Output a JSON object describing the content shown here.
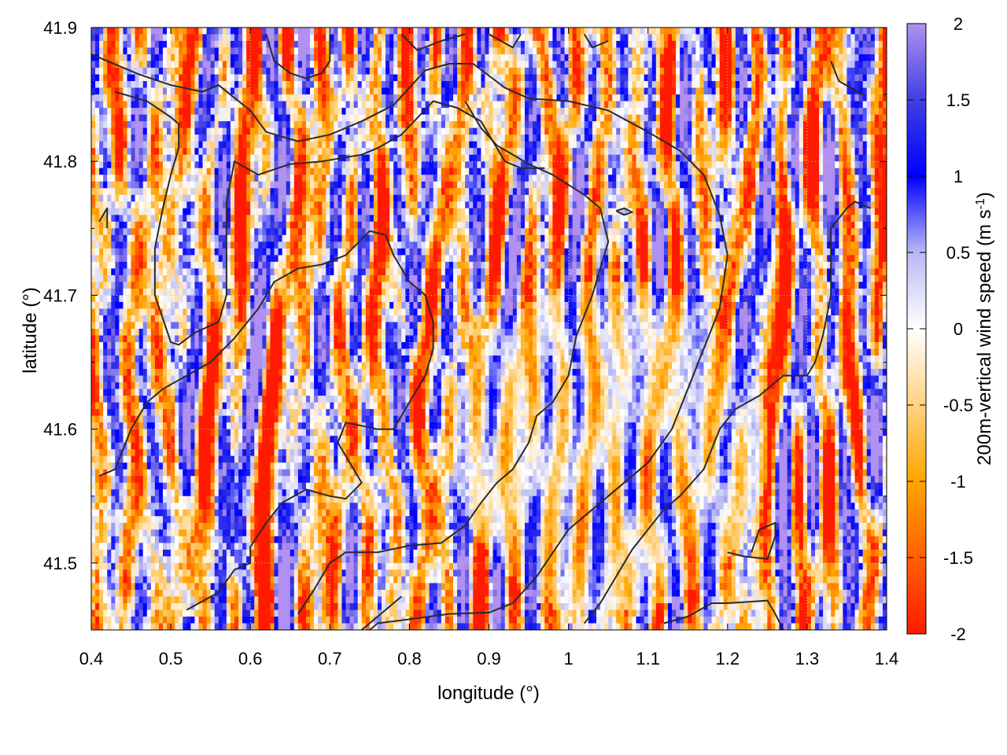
{
  "chart_data": {
    "type": "heatmap",
    "xlabel": "longitude (°)",
    "ylabel": "latitude (°)",
    "colorbar_label": "200m-vertical wind speed (m s⁻¹)",
    "colorbar_label_parts": {
      "main": "200m-vertical wind speed (m s",
      "sup": "-1",
      "close": ")"
    },
    "xlim": [
      0.4,
      1.4
    ],
    "ylim": [
      41.45,
      41.9
    ],
    "clim": [
      -2,
      2
    ],
    "x_ticks": [
      "0.4",
      "0.5",
      "0.6",
      "0.7",
      "0.8",
      "0.9",
      "1",
      "1.1",
      "1.2",
      "1.3",
      "1.4"
    ],
    "y_ticks": [
      "41.5",
      "41.6",
      "41.7",
      "41.8",
      "41.9"
    ],
    "colorbar_ticks": [
      "-2",
      "-1.5",
      "-1",
      "-0.5",
      "0",
      "0.5",
      "1",
      "1.5",
      "2"
    ],
    "colormap": [
      {
        "v": -2.0,
        "color": "#ff1a00"
      },
      {
        "v": -1.0,
        "color": "#ffa500"
      },
      {
        "v": -0.3,
        "color": "#ffe4b5"
      },
      {
        "v": 0.0,
        "color": "#ffffff"
      },
      {
        "v": 0.5,
        "color": "#b8b8f5"
      },
      {
        "v": 1.0,
        "color": "#0000ff"
      },
      {
        "v": 1.5,
        "color": "#4040e0"
      },
      {
        "v": 2.0,
        "color": "#b090f0"
      }
    ],
    "grid": true,
    "field_description": "gridded vertical wind speed field (about 200 x 90 cells) with overlaid black coastline/terrain contours",
    "contours": [
      [
        [
          0.4,
          41.88
        ],
        [
          0.46,
          41.865
        ],
        [
          0.5,
          41.857
        ],
        [
          0.54,
          41.852
        ],
        [
          0.56,
          41.857
        ],
        [
          0.6,
          41.838
        ],
        [
          0.62,
          41.822
        ],
        [
          0.66,
          41.815
        ],
        [
          0.7,
          41.82
        ],
        [
          0.74,
          41.83
        ],
        [
          0.78,
          41.842
        ],
        [
          0.82,
          41.868
        ],
        [
          0.85,
          41.873
        ],
        [
          0.88,
          41.873
        ],
        [
          0.92,
          41.855
        ],
        [
          0.95,
          41.847
        ],
        [
          1.0,
          41.845
        ],
        [
          1.05,
          41.838
        ],
        [
          1.1,
          41.822
        ],
        [
          1.14,
          41.808
        ],
        [
          1.17,
          41.79
        ],
        [
          1.19,
          41.76
        ],
        [
          1.2,
          41.73
        ],
        [
          1.19,
          41.69
        ],
        [
          1.17,
          41.66
        ],
        [
          1.15,
          41.63
        ],
        [
          1.13,
          41.6
        ],
        [
          1.1,
          41.575
        ],
        [
          1.05,
          41.55
        ],
        [
          1.0,
          41.525
        ],
        [
          0.96,
          41.49
        ],
        [
          0.93,
          41.47
        ],
        [
          0.9,
          41.463
        ],
        [
          0.85,
          41.462
        ],
        [
          0.8,
          41.458
        ],
        [
          0.76,
          41.455
        ],
        [
          0.75,
          41.45
        ]
      ],
      [
        [
          0.43,
          41.852
        ],
        [
          0.47,
          41.845
        ],
        [
          0.5,
          41.833
        ],
        [
          0.51,
          41.828
        ],
        [
          0.51,
          41.81
        ],
        [
          0.5,
          41.79
        ],
        [
          0.49,
          41.765
        ],
        [
          0.48,
          41.735
        ],
        [
          0.48,
          41.7
        ],
        [
          0.5,
          41.665
        ],
        [
          0.51,
          41.663
        ],
        [
          0.53,
          41.672
        ],
        [
          0.56,
          41.68
        ],
        [
          0.57,
          41.7
        ],
        [
          0.57,
          41.74
        ],
        [
          0.57,
          41.77
        ],
        [
          0.58,
          41.8
        ],
        [
          0.61,
          41.79
        ],
        [
          0.65,
          41.798
        ],
        [
          0.69,
          41.8
        ],
        [
          0.74,
          41.805
        ],
        [
          0.76,
          41.81
        ],
        [
          0.79,
          41.82
        ],
        [
          0.83,
          41.845
        ],
        [
          0.86,
          41.84
        ],
        [
          0.89,
          41.83
        ],
        [
          0.92,
          41.8
        ],
        [
          0.94,
          41.795
        ],
        [
          0.97,
          41.795
        ]
      ],
      [
        [
          0.41,
          41.565
        ],
        [
          0.43,
          41.57
        ],
        [
          0.45,
          41.6
        ],
        [
          0.47,
          41.62
        ],
        [
          0.49,
          41.63
        ],
        [
          0.52,
          41.64
        ],
        [
          0.55,
          41.65
        ],
        [
          0.58,
          41.668
        ],
        [
          0.61,
          41.69
        ],
        [
          0.63,
          41.71
        ],
        [
          0.66,
          41.72
        ],
        [
          0.69,
          41.723
        ],
        [
          0.72,
          41.73
        ],
        [
          0.75,
          41.748
        ],
        [
          0.77,
          41.745
        ],
        [
          0.78,
          41.73
        ],
        [
          0.8,
          41.71
        ],
        [
          0.82,
          41.7
        ],
        [
          0.83,
          41.68
        ],
        [
          0.83,
          41.66
        ],
        [
          0.82,
          41.64
        ],
        [
          0.8,
          41.62
        ],
        [
          0.78,
          41.6
        ],
        [
          0.76,
          41.6
        ],
        [
          0.72,
          41.605
        ],
        [
          0.71,
          41.59
        ],
        [
          0.72,
          41.58
        ],
        [
          0.73,
          41.57
        ],
        [
          0.74,
          41.56
        ],
        [
          0.72,
          41.548
        ],
        [
          0.7,
          41.55
        ],
        [
          0.67,
          41.555
        ],
        [
          0.64,
          41.545
        ],
        [
          0.62,
          41.53
        ],
        [
          0.6,
          41.512
        ],
        [
          0.6,
          41.5
        ],
        [
          0.58,
          41.495
        ],
        [
          0.56,
          41.478
        ],
        [
          0.52,
          41.465
        ]
      ],
      [
        [
          0.66,
          41.462
        ],
        [
          0.68,
          41.48
        ],
        [
          0.7,
          41.5
        ],
        [
          0.72,
          41.508
        ],
        [
          0.76,
          41.508
        ],
        [
          0.8,
          41.513
        ],
        [
          0.84,
          41.515
        ],
        [
          0.87,
          41.528
        ],
        [
          0.89,
          41.545
        ],
        [
          0.91,
          41.56
        ],
        [
          0.93,
          41.57
        ],
        [
          0.95,
          41.59
        ],
        [
          0.96,
          41.61
        ],
        [
          0.98,
          41.62
        ],
        [
          1.0,
          41.64
        ],
        [
          1.01,
          41.67
        ],
        [
          1.03,
          41.7
        ],
        [
          1.04,
          41.72
        ],
        [
          1.05,
          41.74
        ],
        [
          1.04,
          41.765
        ],
        [
          1.02,
          41.775
        ],
        [
          0.98,
          41.79
        ],
        [
          0.95,
          41.798
        ],
        [
          0.91,
          41.812
        ],
        [
          0.89,
          41.825
        ],
        [
          0.87,
          41.845
        ]
      ],
      [
        [
          1.02,
          41.455
        ],
        [
          1.04,
          41.47
        ],
        [
          1.06,
          41.49
        ],
        [
          1.08,
          41.51
        ],
        [
          1.1,
          41.525
        ],
        [
          1.12,
          41.54
        ],
        [
          1.14,
          41.55
        ],
        [
          1.17,
          41.57
        ],
        [
          1.19,
          41.6
        ],
        [
          1.21,
          41.615
        ],
        [
          1.24,
          41.625
        ],
        [
          1.27,
          41.64
        ],
        [
          1.3,
          41.64
        ],
        [
          1.31,
          41.65
        ],
        [
          1.32,
          41.67
        ],
        [
          1.33,
          41.7
        ],
        [
          1.33,
          41.73
        ],
        [
          1.33,
          41.75
        ],
        [
          1.35,
          41.765
        ],
        [
          1.36,
          41.77
        ],
        [
          1.38,
          41.765
        ]
      ],
      [
        [
          1.12,
          41.455
        ],
        [
          1.15,
          41.46
        ],
        [
          1.18,
          41.47
        ],
        [
          1.2,
          41.47
        ],
        [
          1.25,
          41.472
        ],
        [
          1.26,
          41.462
        ],
        [
          1.27,
          41.45
        ]
      ],
      [
        [
          1.2,
          41.508
        ],
        [
          1.22,
          41.505
        ],
        [
          1.25,
          41.503
        ],
        [
          1.26,
          41.52
        ],
        [
          1.26,
          41.53
        ],
        [
          1.24,
          41.525
        ],
        [
          1.23,
          41.508
        ]
      ],
      [
        [
          1.06,
          41.763
        ],
        [
          1.07,
          41.765
        ],
        [
          1.08,
          41.762
        ],
        [
          1.07,
          41.76
        ],
        [
          1.06,
          41.763
        ]
      ],
      [
        [
          0.62,
          41.895
        ],
        [
          0.63,
          41.875
        ],
        [
          0.65,
          41.866
        ],
        [
          0.67,
          41.862
        ],
        [
          0.69,
          41.866
        ],
        [
          0.7,
          41.875
        ],
        [
          0.7,
          41.895
        ]
      ],
      [
        [
          0.79,
          41.895
        ],
        [
          0.81,
          41.883
        ],
        [
          0.84,
          41.89
        ],
        [
          0.87,
          41.895
        ]
      ],
      [
        [
          0.9,
          41.895
        ],
        [
          0.93,
          41.885
        ],
        [
          0.94,
          41.895
        ]
      ],
      [
        [
          1.02,
          41.895
        ],
        [
          1.03,
          41.885
        ],
        [
          1.05,
          41.89
        ]
      ],
      [
        [
          1.33,
          41.875
        ],
        [
          1.34,
          41.86
        ],
        [
          1.37,
          41.85
        ]
      ],
      [
        [
          0.41,
          41.755
        ],
        [
          0.42,
          41.765
        ],
        [
          0.42,
          41.75
        ]
      ],
      [
        [
          0.74,
          41.45
        ],
        [
          0.76,
          41.46
        ],
        [
          0.78,
          41.47
        ],
        [
          0.79,
          41.475
        ]
      ]
    ]
  }
}
